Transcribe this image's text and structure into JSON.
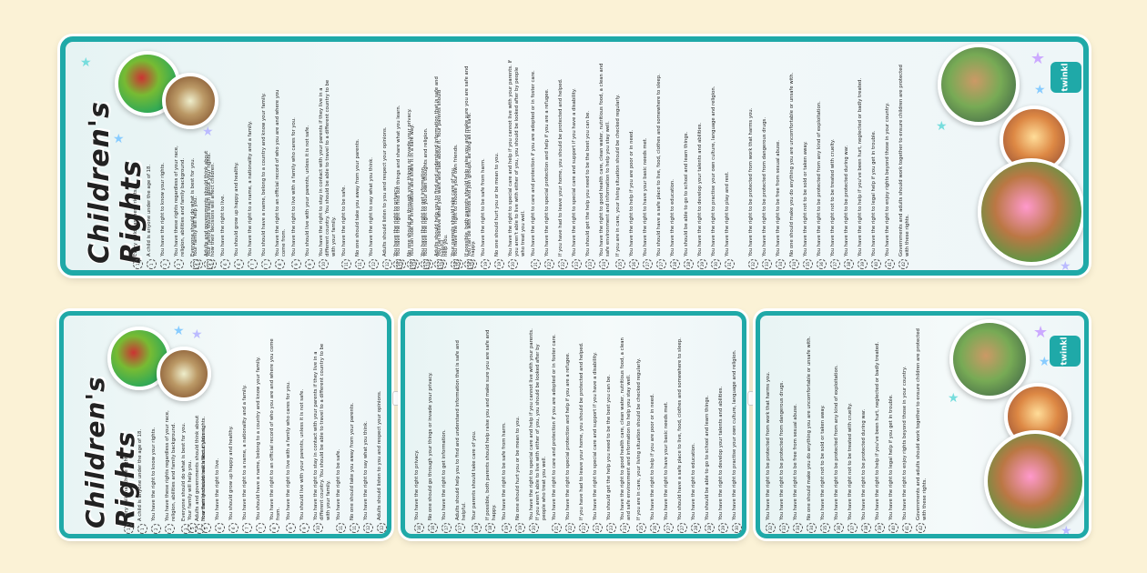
{
  "doc": {
    "title": "Children's Rights",
    "logo_text": "twinkl"
  },
  "colors": {
    "accent": "#1fa9a8",
    "background": "#fbf2d6"
  },
  "icons": [
    "star-icon",
    "twinkl-logo"
  ],
  "rights": [
    "Every child has these rights.",
    "A child is anyone under the age of 18.",
    "You have the right to know your rights.",
    "You have these rights regardless of your race, religion, abilities and family background.",
    "Everyone should do what is best for you.",
    "Adults and governments should think about how their decisions will affect children.",
    "Your family will help you.",
    "Your family should teach about your rights.",
    "You have the right to live.",
    "You should grow up happy and healthy.",
    "You have the right to a name, a nationality and a family.",
    "You should have a name, belong to a country and know your family.",
    "You have the right to an official record of who you are and where you come from.",
    "You have the right to live with a family who cares for you.",
    "You should live with your parents, unless it is not safe.",
    "You have the right to stay in contact with your parents if they live in a different country. You should be able to travel to a different country to be with your family.",
    "You have the right to be safe.",
    "No one should take you away from your parents.",
    "You have the right to say what you think.",
    "Adults should listen to you and respect your opinions.",
    "You have the right to find out things and share what you learn.",
    "You can look for information and share it in a safe way.",
    "You have the right to your own thoughts and religion.",
    "You can believe what you want and talk about it. Your parents should help you.",
    "You have the right to choose your own friends.",
    "You can be with friends and join groups, as long as it's safe.",
    "You have the right to privacy.",
    "No one should go through your things or invade your privacy.",
    "You have the right to get information.",
    "Adults should help you to find and understand information that is safe and helpful.",
    "Your parents should take care of you.",
    "If possible, both parents should help raise you and make sure you are safe and happy.",
    "You have the right to be safe from harm.",
    "No one should hurt you or be mean to you.",
    "You have the right to special care and help if you cannot live with your parents. If you aren't able to live with either of you, you should be looked after by people who treat you well.",
    "You have the right to care and protection if you are adopted or in foster care.",
    "You have the right to special protection and help if you are a refugee.",
    "If you have had to leave your home, you should be protected and helped.",
    "You have the right to special care and support if you have a disability.",
    "You should get the help you need to be the best you can be.",
    "You have the right to good health care, clean water, nutritious food, a clean and safe environment and information to help you stay well.",
    "If you are in care, your living situation should be checked regularly.",
    "You have the right to help if you are poor or in need.",
    "You have the right to have your basic needs met.",
    "You should have a safe place to live, food, clothes and somewhere to sleep.",
    "You have the right to education.",
    "You should be able to go to school and learn things.",
    "You have the right to develop your talents and abilities.",
    "You have the right to practise your own culture, language and religion.",
    "You have the right to play and rest.",
    "You have the right to be protected from work that harms you.",
    "You have the right to be protected from dangerous drugs.",
    "You have the right to be free from sexual abuse.",
    "No one should make you do anything you are uncomfortable or unsafe with.",
    "You have the right not to be sold or taken away.",
    "You have the right to be protected from any kind of exploitation.",
    "You have the right not to be treated with cruelty.",
    "You have the right to be protected during war.",
    "You have the right to help if you've been hurt, neglected or badly treated.",
    "You have the right to legal help if you get in trouble.",
    "You have the right to enjoy rights beyond those in your country.",
    "Governments and adults should work together to ensure children are protected with these rights."
  ]
}
